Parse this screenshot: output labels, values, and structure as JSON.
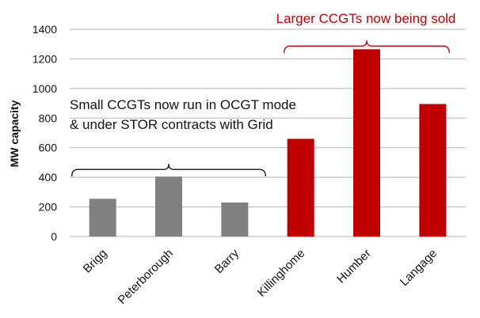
{
  "chart_data": {
    "type": "bar",
    "title": "",
    "xlabel": "",
    "ylabel": "MW capacity",
    "ylim": [
      0,
      1400
    ],
    "yticks": [
      0,
      200,
      400,
      600,
      800,
      1000,
      1200,
      1400
    ],
    "ytick_labels": [
      "0",
      "200",
      "400",
      "600",
      "800",
      "1000",
      "1200",
      "1400"
    ],
    "grid": true,
    "categories": [
      "Brigg",
      "Peterborough",
      "Barry",
      "Killinghome",
      "Humber",
      "Langage"
    ],
    "values": [
      255,
      405,
      230,
      660,
      1265,
      895
    ],
    "bar_colors": [
      "#808080",
      "#808080",
      "#808080",
      "#c00000",
      "#c00000",
      "#c00000"
    ],
    "annotations": [
      {
        "name": "small-ccgts",
        "lines": [
          "Small CCGTs now run in OCGT mode",
          "& under STOR contracts with Grid"
        ],
        "color": "#111111",
        "spans": [
          "Brigg",
          "Barry"
        ]
      },
      {
        "name": "larger-ccgts",
        "lines": [
          "Larger CCGTs now being sold"
        ],
        "color": "#c00000",
        "spans": [
          "Killinghome",
          "Langage"
        ]
      }
    ]
  }
}
